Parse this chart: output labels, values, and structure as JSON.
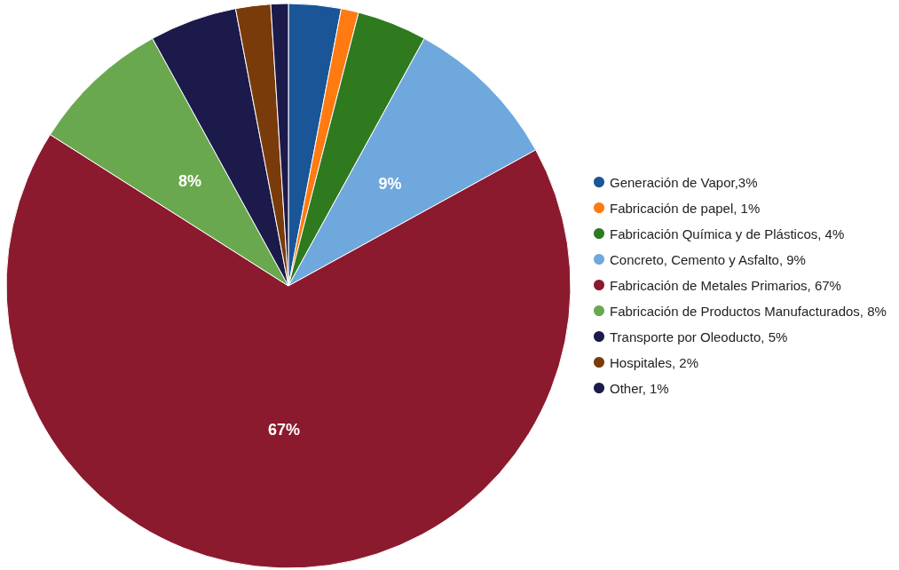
{
  "chart_data": {
    "type": "pie",
    "categories": [
      "Generación de Vapor,3%",
      "Fabricación de papel, 1%",
      "Fabricación Química y de Plásticos, 4%",
      "Concreto, Cemento y Asfalto, 9%",
      "Fabricación de Metales Primarios, 67%",
      "Fabricación de Productos Manufacturados, 8%",
      "Transporte por Oleoducto, 5%",
      "Hospitales, 2%",
      "Other, 1%"
    ],
    "values": [
      3,
      1,
      4,
      9,
      67,
      8,
      5,
      2,
      1
    ],
    "colors": [
      "#1a5598",
      "#ff7a10",
      "#2f7a1f",
      "#6fa8dc",
      "#8b1a2e",
      "#6aa84f",
      "#1c1a4a",
      "#7a3b0a",
      "#1c1a4a"
    ],
    "value_labels": [
      null,
      null,
      null,
      "9%",
      "67%",
      "8%",
      null,
      null,
      null
    ],
    "legend": "right"
  }
}
